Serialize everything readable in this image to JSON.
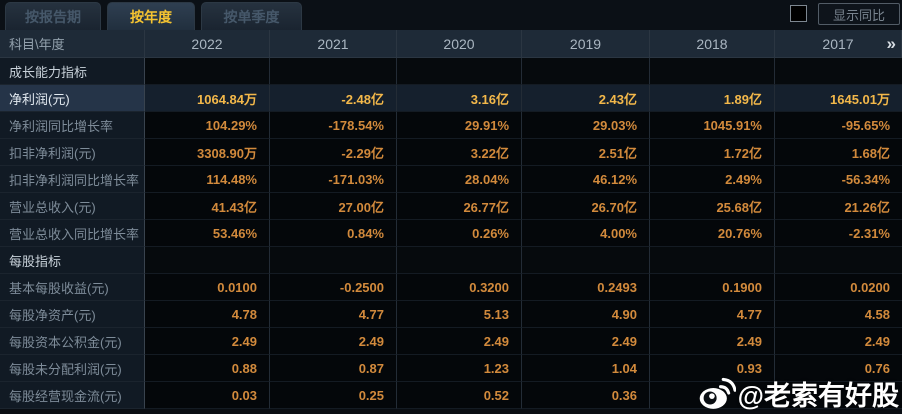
{
  "tabs": [
    {
      "label": "按报告期",
      "active": false
    },
    {
      "label": "按年度",
      "active": true
    },
    {
      "label": "按单季度",
      "active": false
    }
  ],
  "controls": {
    "yoy_checkbox_checked": false,
    "yoy_label": "显示同比"
  },
  "table": {
    "corner_label": "科目\\年度",
    "years": [
      "2022",
      "2021",
      "2020",
      "2019",
      "2018",
      "2017"
    ],
    "more_icon": "»",
    "rows": [
      {
        "label": "成长能力指标",
        "type": "section",
        "values": [
          "",
          "",
          "",
          "",
          "",
          ""
        ]
      },
      {
        "label": "净利润(元)",
        "type": "highlight",
        "values": [
          "1064.84万",
          "-2.48亿",
          "3.16亿",
          "2.43亿",
          "1.89亿",
          "1645.01万"
        ]
      },
      {
        "label": "净利润同比增长率",
        "type": "data",
        "values": [
          "104.29%",
          "-178.54%",
          "29.91%",
          "29.03%",
          "1045.91%",
          "-95.65%"
        ]
      },
      {
        "label": "扣非净利润(元)",
        "type": "data",
        "values": [
          "3308.90万",
          "-2.29亿",
          "3.22亿",
          "2.51亿",
          "1.72亿",
          "1.68亿"
        ]
      },
      {
        "label": "扣非净利润同比增长率",
        "type": "data",
        "values": [
          "114.48%",
          "-171.03%",
          "28.04%",
          "46.12%",
          "2.49%",
          "-56.34%"
        ]
      },
      {
        "label": "营业总收入(元)",
        "type": "data",
        "values": [
          "41.43亿",
          "27.00亿",
          "26.77亿",
          "26.70亿",
          "25.68亿",
          "21.26亿"
        ]
      },
      {
        "label": "营业总收入同比增长率",
        "type": "data",
        "values": [
          "53.46%",
          "0.84%",
          "0.26%",
          "4.00%",
          "20.76%",
          "-2.31%"
        ]
      },
      {
        "label": "每股指标",
        "type": "section",
        "values": [
          "",
          "",
          "",
          "",
          "",
          ""
        ]
      },
      {
        "label": "基本每股收益(元)",
        "type": "data",
        "values": [
          "0.0100",
          "-0.2500",
          "0.3200",
          "0.2493",
          "0.1900",
          "0.0200"
        ]
      },
      {
        "label": "每股净资产(元)",
        "type": "data",
        "values": [
          "4.78",
          "4.77",
          "5.13",
          "4.90",
          "4.77",
          "4.58"
        ]
      },
      {
        "label": "每股资本公积金(元)",
        "type": "data",
        "values": [
          "2.49",
          "2.49",
          "2.49",
          "2.49",
          "2.49",
          "2.49"
        ]
      },
      {
        "label": "每股未分配利润(元)",
        "type": "data",
        "values": [
          "0.88",
          "0.87",
          "1.23",
          "1.04",
          "0.93",
          "0.76"
        ]
      },
      {
        "label": "每股经营现金流(元)",
        "type": "data",
        "values": [
          "0.03",
          "0.25",
          "0.52",
          "0.36",
          "",
          ""
        ]
      }
    ]
  },
  "watermark": {
    "text": "@老索有好股"
  },
  "colors": {
    "accent_gold": "#f5c431",
    "value_orange": "#d28a3c",
    "highlight_value": "#f3b84a",
    "header_bg": "#1e2a37",
    "label_col_bg": "#111a24",
    "highlight_row_bg": "#15202d"
  }
}
